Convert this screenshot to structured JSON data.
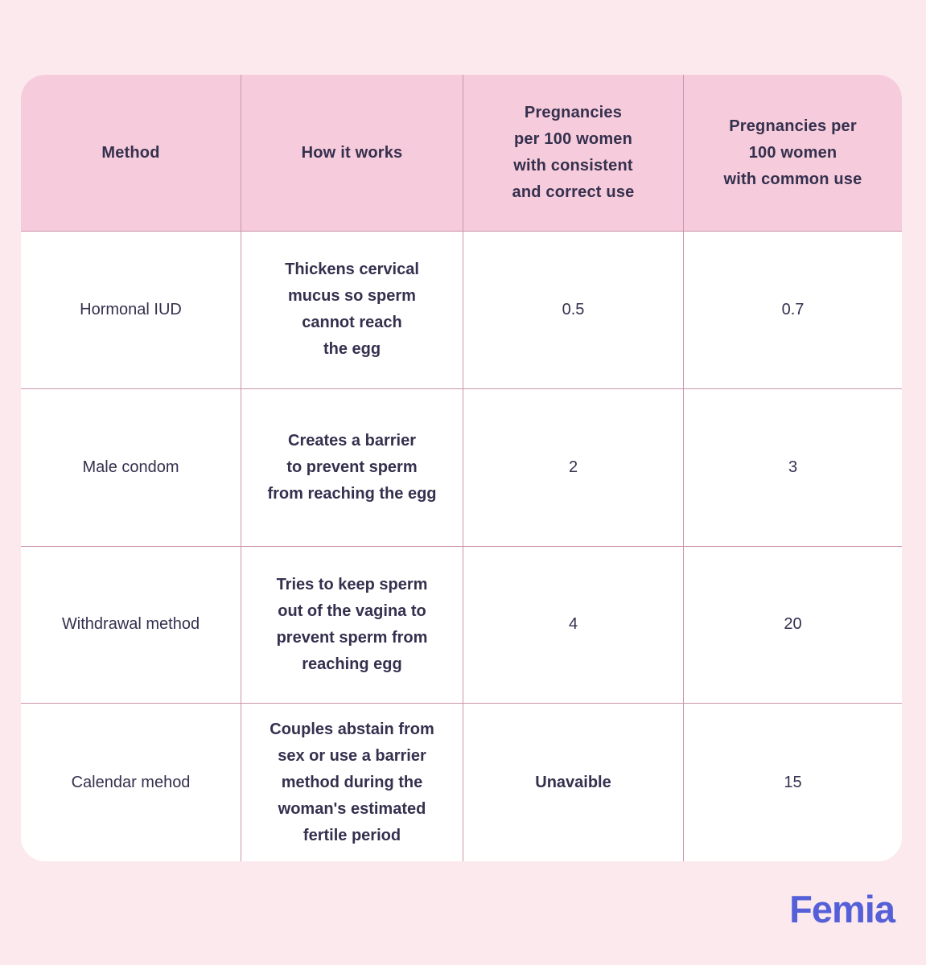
{
  "theme": {
    "page_bg": "#FBE9EE",
    "header_bg": "#F6CBDB",
    "border_color": "#CC96AB",
    "text_color": "#34304E",
    "brand_color": "#5560D8"
  },
  "brand": {
    "name": "Femia"
  },
  "table": {
    "columns": [
      "Method",
      "How it works",
      "Pregnancies\nper 100 women\nwith consistent\nand correct use",
      "Pregnancies per\n100 women\nwith common use"
    ],
    "rows": [
      {
        "method": "Hormonal IUD",
        "how": "Thickens cervical\nmucus so sperm\ncannot reach\nthe egg",
        "consistent": "0.5",
        "common": "0.7"
      },
      {
        "method": "Male condom",
        "how": "Creates a barrier\nto prevent sperm\nfrom reaching the egg",
        "consistent": "2",
        "common": "3"
      },
      {
        "method": "Withdrawal method",
        "how": "Tries to keep sperm\nout of the vagina to\nprevent sperm from\nreaching egg",
        "consistent": "4",
        "common": "20"
      },
      {
        "method": "Calendar mehod",
        "how": "Couples abstain from\nsex or use a barrier\nmethod during the\nwoman's estimated\nfertile period",
        "consistent": "Unavaible",
        "common": "15"
      }
    ]
  },
  "chart_data": {
    "type": "table",
    "columns": [
      "Method",
      "How it works",
      "Pregnancies per 100 women with consistent and correct use",
      "Pregnancies per 100 women with common use"
    ],
    "rows": [
      [
        "Hormonal IUD",
        "Thickens cervical mucus so sperm cannot reach the egg",
        0.5,
        0.7
      ],
      [
        "Male condom",
        "Creates a barrier to prevent sperm from reaching the egg",
        2,
        3
      ],
      [
        "Withdrawal method",
        "Tries to keep sperm out of the vagina to prevent sperm from reaching egg",
        4,
        20
      ],
      [
        "Calendar mehod",
        "Couples abstain from sex or use a barrier method during the woman's estimated fertile period",
        "Unavaible",
        15
      ]
    ],
    "legend_position": "none",
    "title": ""
  }
}
